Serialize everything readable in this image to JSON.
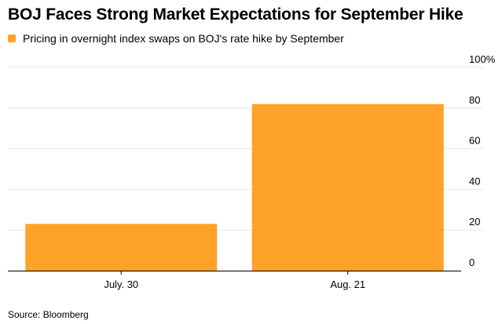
{
  "chart_data": {
    "type": "bar",
    "title": "BOJ Faces Strong Market Expectations for September Hike",
    "series": [
      {
        "name": "Pricing in overnight index swaps on BOJ's rate hike by September",
        "values": [
          23,
          82
        ]
      }
    ],
    "categories": [
      "July. 30",
      "Aug. 21"
    ],
    "ylim": [
      0,
      100
    ],
    "yticks": [
      0,
      20,
      40,
      60,
      80,
      100
    ],
    "ytick_labels": [
      "0",
      "20",
      "40",
      "60",
      "80",
      "100%"
    ],
    "grid": true,
    "y_axis_side": "right",
    "legend_position": "top-left",
    "source": "Source: Bloomberg",
    "colors": {
      "bar": "#ffa229",
      "grid": "#e6e6e6",
      "axis": "#000000"
    }
  }
}
